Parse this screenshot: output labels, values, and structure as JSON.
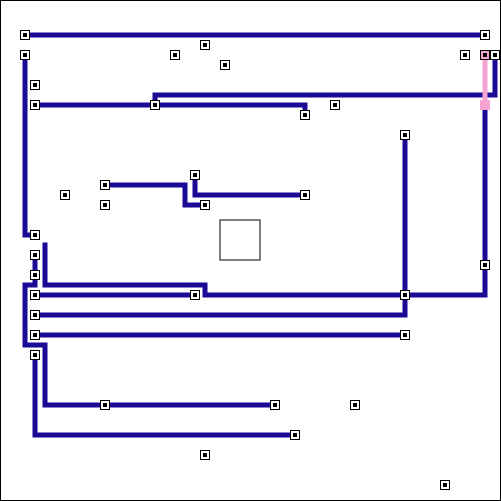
{
  "colors": {
    "background": "#ffffff",
    "border": "#000000",
    "wire": "#1a0a96",
    "highlight": "#f4a3d3",
    "pin_fill": "#ffffff",
    "pin_center": "#000000",
    "component_fill": "#ffffff",
    "component_stroke": "#000000"
  }
}
